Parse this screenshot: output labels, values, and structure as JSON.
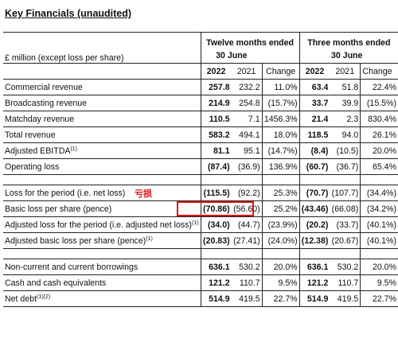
{
  "title": "Key Financials (unaudited)",
  "header": {
    "unit_label": "£ million (except loss per share)",
    "twelve_months_l1": "Twelve months ended",
    "twelve_months_l2": "30 June",
    "three_months_l1": "Three months ended",
    "three_months_l2": "30 June",
    "y2022": "2022",
    "y2021": "2021",
    "change": "Change"
  },
  "annotation": "亏损",
  "rows": [
    {
      "label": "Commercial revenue",
      "sup": "",
      "t22": "257.8",
      "t21": "232.2",
      "tc": "11.0%",
      "q22": "63.4",
      "q21": "51.8",
      "qc": "22.4%"
    },
    {
      "label": "Broadcasting revenue",
      "sup": "",
      "t22": "214.9",
      "t21": "254.8",
      "tc": "(15.7%)",
      "q22": "33.7",
      "q21": "39.9",
      "qc": "(15.5%)"
    },
    {
      "label": "Matchday revenue",
      "sup": "",
      "t22": "110.5",
      "t21": "7.1",
      "tc": "1456.3%",
      "q22": "21.4",
      "q21": "2.3",
      "qc": "830.4%"
    },
    {
      "label": "Total revenue",
      "sup": "",
      "t22": "583.2",
      "t21": "494.1",
      "tc": "18.0%",
      "q22": "118.5",
      "q21": "94.0",
      "qc": "26.1%"
    },
    {
      "label": "Adjusted EBITDA",
      "sup": "(1)",
      "t22": "81.1",
      "t21": "95.1",
      "tc": "(14.7%)",
      "q22": "(8.4)",
      "q21": "(10.5)",
      "qc": "20.0%"
    },
    {
      "label": "Operating loss",
      "sup": "",
      "t22": "(87.4)",
      "t21": "(36.9)",
      "tc": "136.9%",
      "q22": "(60.7)",
      "q21": "(36.7)",
      "qc": "65.4%"
    },
    {
      "label": "Loss for the period (i.e. net loss)",
      "sup": "",
      "t22": "(115.5)",
      "t21": "(92.2)",
      "tc": "25.3%",
      "q22": "(70.7)",
      "q21": "(107.7)",
      "qc": "(34.4%)"
    },
    {
      "label": "Basic loss per share (pence)",
      "sup": "",
      "t22": "(70.86)",
      "t21": "(56.60)",
      "tc": "25.2%",
      "q22": "(43.46)",
      "q21": "(66.08)",
      "qc": "(34.2%)"
    },
    {
      "label": "Adjusted loss for the period (i.e. adjusted net loss)",
      "sup": "(1)",
      "t22": "(34.0)",
      "t21": "(44.7)",
      "tc": "(23.9%)",
      "q22": "(20.2)",
      "q21": "(33.7)",
      "qc": "(40.1%)"
    },
    {
      "label": "Adjusted basic loss per share (pence)",
      "sup": "(1)",
      "t22": "(20.83)",
      "t21": "(27.41)",
      "tc": "(24.0%)",
      "q22": "(12.38)",
      "q21": "(20.67)",
      "qc": "(40.1%)"
    },
    {
      "label": "Non-current and current borrowings",
      "sup": "",
      "t22": "636.1",
      "t21": "530.2",
      "tc": "20.0%",
      "q22": "636.1",
      "q21": "530.2",
      "qc": "20.0%"
    },
    {
      "label": "Cash and cash equivalents",
      "sup": "",
      "t22": "121.2",
      "t21": "110.7",
      "tc": "9.5%",
      "q22": "121.2",
      "q21": "110.7",
      "qc": "9.5%"
    },
    {
      "label": "Net debt",
      "sup": "(1)(2)",
      "t22": "514.9",
      "t21": "419.5",
      "tc": "22.7%",
      "q22": "514.9",
      "q21": "419.5",
      "qc": "22.7%"
    }
  ]
}
